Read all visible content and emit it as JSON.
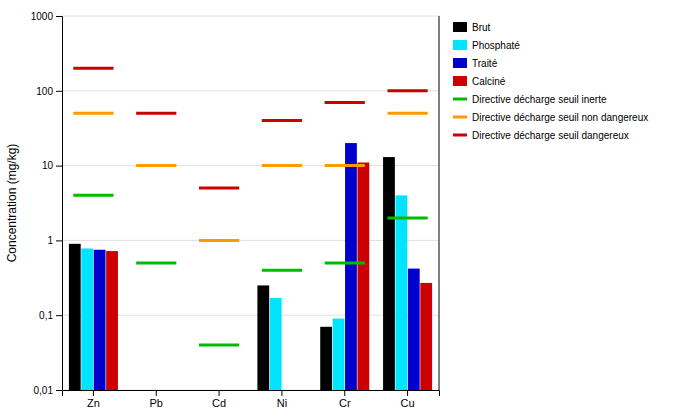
{
  "chart_data": {
    "type": "bar",
    "categories": [
      "Zn",
      "Pb",
      "Cd",
      "Ni",
      "Cr",
      "Cu"
    ],
    "series": [
      {
        "name": "Brut",
        "type": "bar",
        "color": "#000000",
        "values": [
          0.9,
          null,
          null,
          0.25,
          0.07,
          13.0
        ]
      },
      {
        "name": "Phosphaté",
        "type": "bar",
        "color": "#00e5ff",
        "values": [
          0.78,
          null,
          null,
          0.17,
          0.09,
          4.0
        ]
      },
      {
        "name": "Traité",
        "type": "bar",
        "color": "#0000cc",
        "values": [
          0.75,
          null,
          null,
          null,
          20.0,
          0.42
        ]
      },
      {
        "name": "Calciné",
        "type": "bar",
        "color": "#cc0000",
        "values": [
          0.72,
          null,
          null,
          null,
          11.0,
          0.27
        ]
      },
      {
        "name": "Directive décharge seuil inerte",
        "type": "line",
        "color": "#00bb00",
        "values": [
          4.0,
          0.5,
          0.04,
          0.4,
          0.5,
          2.0
        ]
      },
      {
        "name": "Directive décharge seuil non dangereux",
        "type": "line",
        "color": "#ff9900",
        "values": [
          50.0,
          10.0,
          1.0,
          10.0,
          10.0,
          50.0
        ]
      },
      {
        "name": "Directive décharge seuil dangereux",
        "type": "line",
        "color": "#cc0000",
        "values": [
          200.0,
          50.0,
          5.0,
          40.0,
          70.0,
          100.0
        ]
      }
    ],
    "ylabel": "Concentration (mg/kg)",
    "log": "y",
    "ylim": [
      0.01,
      1000
    ],
    "yticks": [
      {
        "value": 0.01,
        "label": "0,01"
      },
      {
        "value": 0.1,
        "label": "0,1"
      },
      1,
      10,
      100,
      1000
    ],
    "grid": true,
    "legend": "right"
  }
}
